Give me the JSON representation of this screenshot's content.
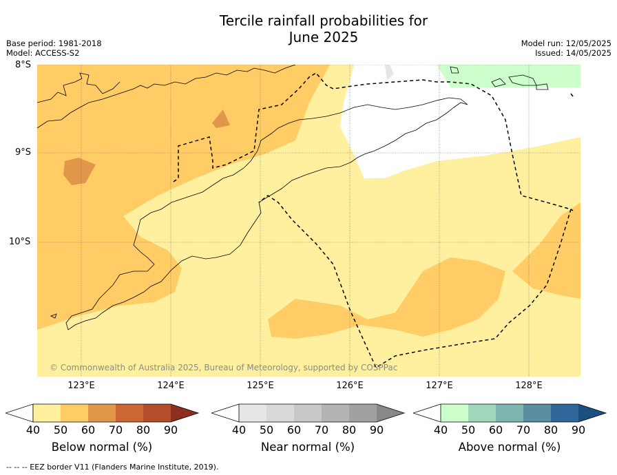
{
  "title_line1": "Tercile rainfall probabilities for",
  "title_line2": "June 2025",
  "base_period": "Base period: 1981-2018",
  "model": "Model: ACCESS-S2",
  "model_run": "Model run: 12/05/2025",
  "issued": "Issued: 14/05/2025",
  "lat_labels": [
    "8°S",
    "9°S",
    "10°S"
  ],
  "lon_labels": [
    "123°E",
    "124°E",
    "125°E",
    "126°E",
    "127°E",
    "128°E"
  ],
  "copyright": "© Commonwealth of Australia 2025, Bureau of Meteorology, supported by COSPPac",
  "colorbars": [
    {
      "title": "Below normal (%)",
      "ticks": [
        "40",
        "50",
        "60",
        "70",
        "80",
        "90"
      ],
      "colors": [
        "#ffffff",
        "#fff0a0",
        "#ffcc66",
        "#e0974a",
        "#cc6633",
        "#b34d2b",
        "#8c2f1e"
      ]
    },
    {
      "title": "Near normal (%)",
      "ticks": [
        "40",
        "50",
        "60",
        "70",
        "80",
        "90"
      ],
      "colors": [
        "#ffffff",
        "#e6e6e6",
        "#d9d9d9",
        "#c8c8c8",
        "#b3b3b3",
        "#a0a0a0",
        "#888888"
      ]
    },
    {
      "title": "Above normal (%)",
      "ticks": [
        "40",
        "50",
        "60",
        "70",
        "80",
        "90"
      ],
      "colors": [
        "#ffffff",
        "#ccffcc",
        "#a0d6bc",
        "#7fb5b0",
        "#5a8fa0",
        "#2f6699",
        "#1a4f80"
      ]
    }
  ],
  "footer": "--  --  -- EEZ border V11 (Flanders Marine Institute, 2019).",
  "colors": {
    "below_50": "#fff0a0",
    "below_60": "#ffcc66",
    "below_70": "#e0974a",
    "above_50": "#ccffcc",
    "near_40": "#e6e6e6"
  }
}
